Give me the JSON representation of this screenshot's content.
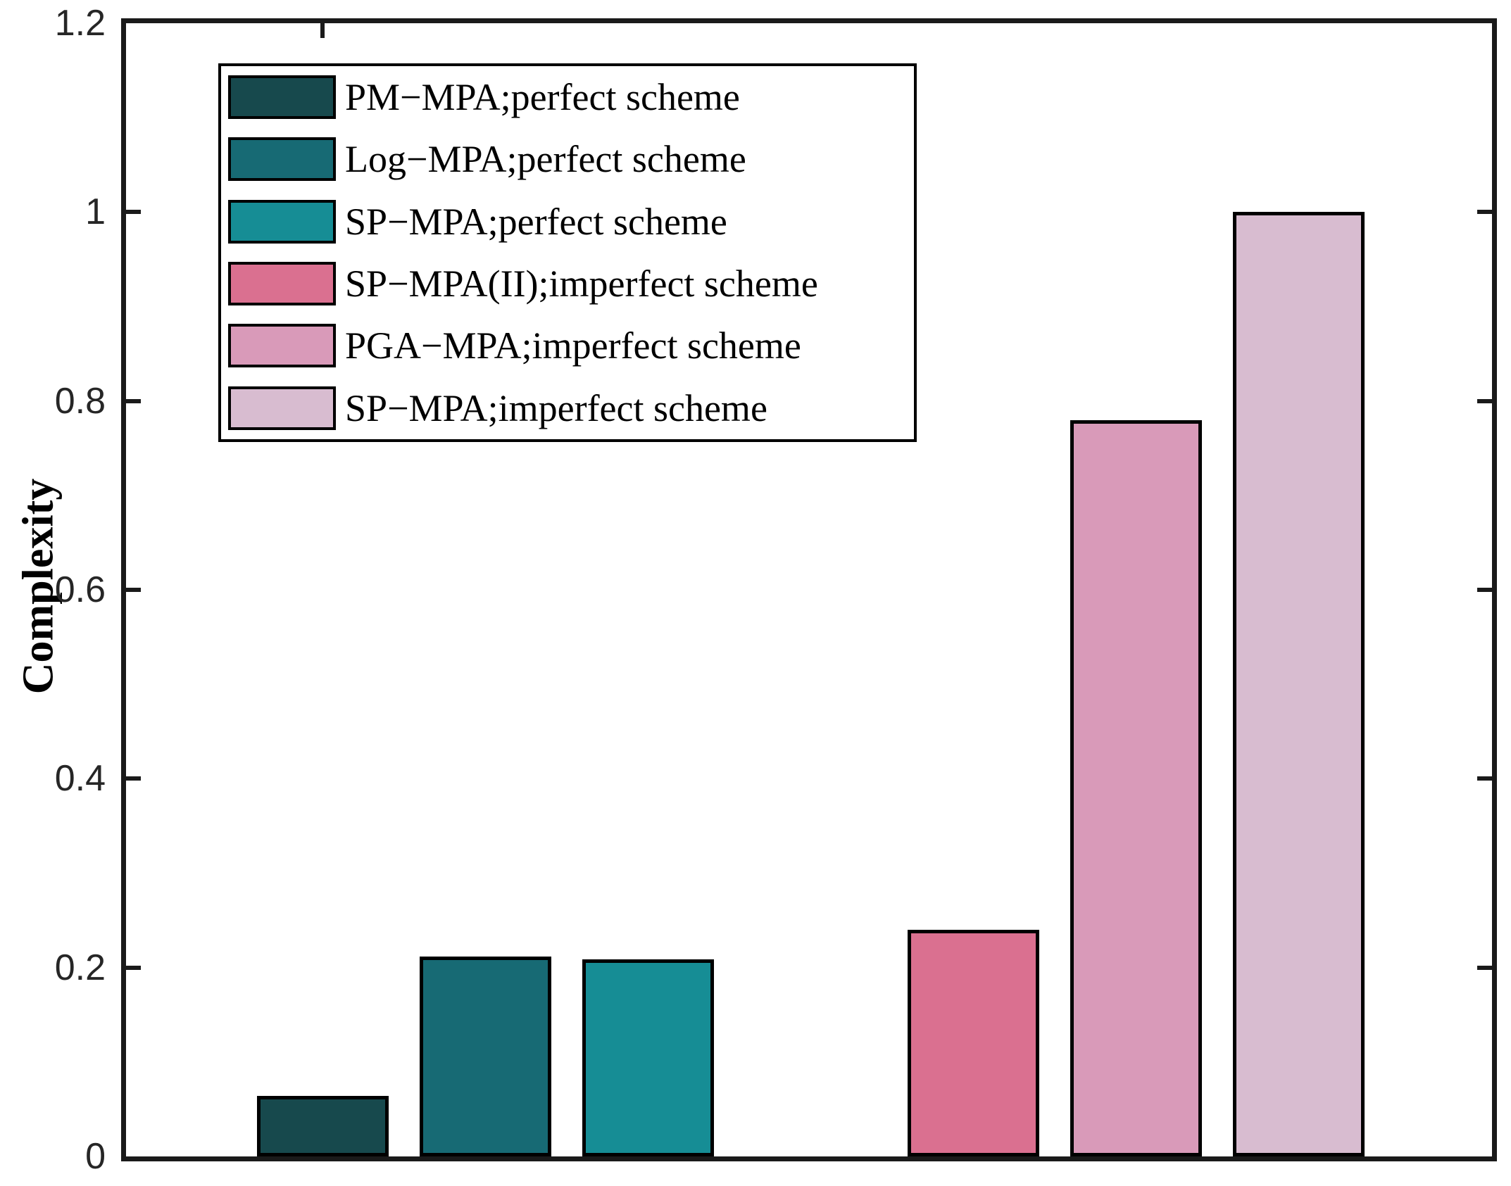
{
  "figure": {
    "background": "#ffffff",
    "axis_color": "#1a1a1a",
    "tick_label_color": "#262626"
  },
  "chart_data": {
    "type": "bar",
    "title": "",
    "xlabel": "",
    "ylabel": "Complexity",
    "x": [
      1,
      2,
      3,
      5,
      6,
      7
    ],
    "xlim": [
      -0.21,
      8.19
    ],
    "ylim": [
      0,
      1.2
    ],
    "yticks": [
      0,
      0.2,
      0.4,
      0.6,
      0.8,
      1,
      1.2
    ],
    "ytick_labels": [
      "0",
      "0.2",
      "0.4",
      "0.6",
      "0.8",
      "1",
      "1.2"
    ],
    "xtick_labels": [],
    "top_axis_tick_x": [
      1
    ],
    "bar_width": 0.81,
    "grid": false,
    "legend_position": "upper left inside",
    "series": [
      {
        "name": "PM−MPA;perfect scheme",
        "value": 0.064,
        "color": "#17494d"
      },
      {
        "name": "Log−MPA;perfect scheme",
        "value": 0.212,
        "color": "#176a74"
      },
      {
        "name": "SP−MPA;perfect scheme",
        "value": 0.209,
        "color": "#168d95"
      },
      {
        "name": "SP−MPA(II);imperfect scheme",
        "value": 0.24,
        "color": "#da7090"
      },
      {
        "name": "PGA−MPA;imperfect scheme",
        "value": 0.78,
        "color": "#d99ab9"
      },
      {
        "name": "SP−MPA;imperfect scheme",
        "value": 1.0,
        "color": "#d8bcd0"
      }
    ]
  }
}
